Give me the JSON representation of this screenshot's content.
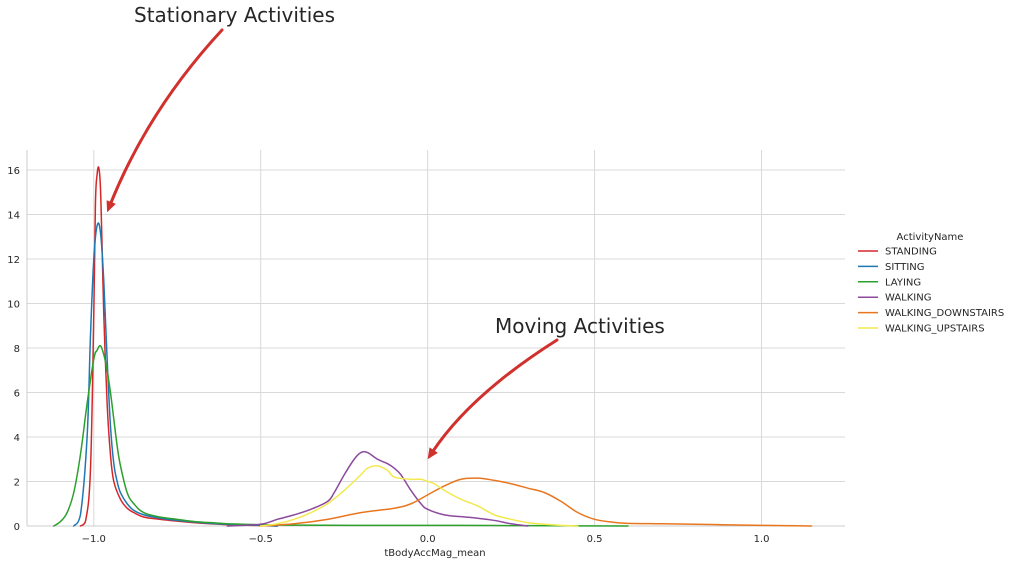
{
  "chart_data": {
    "type": "line",
    "xlabel": "tBodyAccMag_mean",
    "ylabel": "",
    "xlim": [
      -1.2,
      1.25
    ],
    "ylim": [
      0,
      16.9
    ],
    "xticks": [
      -1.0,
      -0.5,
      0.0,
      0.5,
      1.0
    ],
    "xtick_labels": [
      "−1.0",
      "−0.5",
      "0.0",
      "0.5",
      "1.0"
    ],
    "yticks": [
      0,
      2,
      4,
      6,
      8,
      10,
      12,
      14,
      16
    ],
    "ytick_labels": [
      "0",
      "2",
      "4",
      "6",
      "8",
      "10",
      "12",
      "14",
      "16"
    ],
    "grid": true,
    "legend": {
      "title": "ActivityName",
      "placement": "right"
    },
    "series": [
      {
        "name": "STANDING",
        "color": "#d62728",
        "x": [
          -1.04,
          -1.025,
          -1.01,
          -1.0,
          -0.995,
          -0.99,
          -0.985,
          -0.98,
          -0.975,
          -0.97,
          -0.96,
          -0.95,
          -0.94,
          -0.92,
          -0.9,
          -0.88,
          -0.85,
          -0.8,
          -0.75,
          -0.7,
          -0.65,
          -0.6,
          -0.55,
          -0.5,
          -0.45
        ],
        "y": [
          0,
          0.2,
          2.5,
          9.5,
          14.5,
          15.8,
          16.1,
          15.2,
          12.5,
          9.5,
          5.5,
          3.2,
          2.0,
          1.2,
          0.8,
          0.6,
          0.4,
          0.3,
          0.22,
          0.15,
          0.1,
          0.06,
          0.04,
          0.02,
          0
        ]
      },
      {
        "name": "SITTING",
        "color": "#1f77b4",
        "x": [
          -1.06,
          -1.04,
          -1.02,
          -1.01,
          -1.0,
          -0.99,
          -0.98,
          -0.97,
          -0.96,
          -0.95,
          -0.94,
          -0.93,
          -0.92,
          -0.9,
          -0.88,
          -0.85,
          -0.8,
          -0.75,
          -0.7,
          -0.65,
          -0.6,
          -0.55,
          -0.5,
          -0.45
        ],
        "y": [
          0,
          0.5,
          4.0,
          8.5,
          12.0,
          13.5,
          13.2,
          11.0,
          7.5,
          4.5,
          2.8,
          2.0,
          1.5,
          1.0,
          0.7,
          0.5,
          0.35,
          0.25,
          0.18,
          0.12,
          0.08,
          0.05,
          0.03,
          0
        ]
      },
      {
        "name": "LAYING",
        "color": "#2ca02c",
        "x": [
          -1.12,
          -1.1,
          -1.08,
          -1.06,
          -1.04,
          -1.02,
          -1.0,
          -0.99,
          -0.98,
          -0.97,
          -0.96,
          -0.95,
          -0.94,
          -0.93,
          -0.92,
          -0.9,
          -0.88,
          -0.85,
          -0.8,
          -0.75,
          -0.7,
          -0.65,
          -0.6,
          -0.5,
          -0.4,
          -0.2,
          0.0,
          0.2,
          0.4,
          0.6
        ],
        "y": [
          0,
          0.2,
          0.6,
          1.5,
          3.2,
          5.5,
          7.5,
          7.9,
          8.1,
          7.7,
          7.0,
          6.0,
          4.8,
          3.6,
          2.7,
          1.5,
          1.0,
          0.6,
          0.4,
          0.3,
          0.2,
          0.15,
          0.1,
          0.06,
          0.04,
          0.03,
          0.03,
          0.02,
          0.01,
          0
        ]
      },
      {
        "name": "WALKING",
        "color": "#8c4a9e",
        "x": [
          -0.6,
          -0.5,
          -0.45,
          -0.4,
          -0.35,
          -0.3,
          -0.28,
          -0.25,
          -0.22,
          -0.2,
          -0.18,
          -0.15,
          -0.12,
          -0.1,
          -0.08,
          -0.05,
          -0.02,
          0.0,
          0.05,
          0.1,
          0.15,
          0.2,
          0.25,
          0.3
        ],
        "y": [
          0,
          0.08,
          0.3,
          0.5,
          0.75,
          1.1,
          1.5,
          2.3,
          3.0,
          3.3,
          3.3,
          3.0,
          2.8,
          2.6,
          2.3,
          1.6,
          1.0,
          0.75,
          0.5,
          0.42,
          0.35,
          0.25,
          0.1,
          0
        ]
      },
      {
        "name": "WALKING_DOWNSTAIRS",
        "color": "#e8761f",
        "x": [
          -0.5,
          -0.4,
          -0.3,
          -0.2,
          -0.1,
          -0.05,
          0.0,
          0.05,
          0.1,
          0.15,
          0.2,
          0.25,
          0.3,
          0.35,
          0.4,
          0.45,
          0.5,
          0.55,
          0.6,
          0.7,
          0.8,
          0.9,
          1.0,
          1.1,
          1.15
        ],
        "y": [
          0,
          0.1,
          0.3,
          0.6,
          0.8,
          1.0,
          1.4,
          1.8,
          2.1,
          2.15,
          2.05,
          1.9,
          1.7,
          1.5,
          1.1,
          0.6,
          0.3,
          0.18,
          0.12,
          0.1,
          0.08,
          0.05,
          0.03,
          0.01,
          0
        ]
      },
      {
        "name": "WALKING_UPSTAIRS",
        "color": "#f2e94e",
        "x": [
          -0.5,
          -0.45,
          -0.4,
          -0.35,
          -0.3,
          -0.25,
          -0.2,
          -0.18,
          -0.15,
          -0.12,
          -0.1,
          -0.05,
          -0.02,
          0.0,
          0.02,
          0.05,
          0.1,
          0.15,
          0.2,
          0.25,
          0.3,
          0.35,
          0.4,
          0.45
        ],
        "y": [
          0,
          0.1,
          0.3,
          0.6,
          1.0,
          1.6,
          2.3,
          2.6,
          2.7,
          2.5,
          2.2,
          2.1,
          2.1,
          2.0,
          1.9,
          1.6,
          1.2,
          0.9,
          0.5,
          0.3,
          0.15,
          0.08,
          0.03,
          0
        ]
      }
    ],
    "annotations": [
      {
        "text": "Stationary Activities",
        "arrow_to": [
          -0.96,
          14.1
        ],
        "color": "#d0312d"
      },
      {
        "text": "Moving Activities",
        "arrow_to": [
          0.0,
          3.0
        ],
        "color": "#d0312d"
      }
    ]
  }
}
